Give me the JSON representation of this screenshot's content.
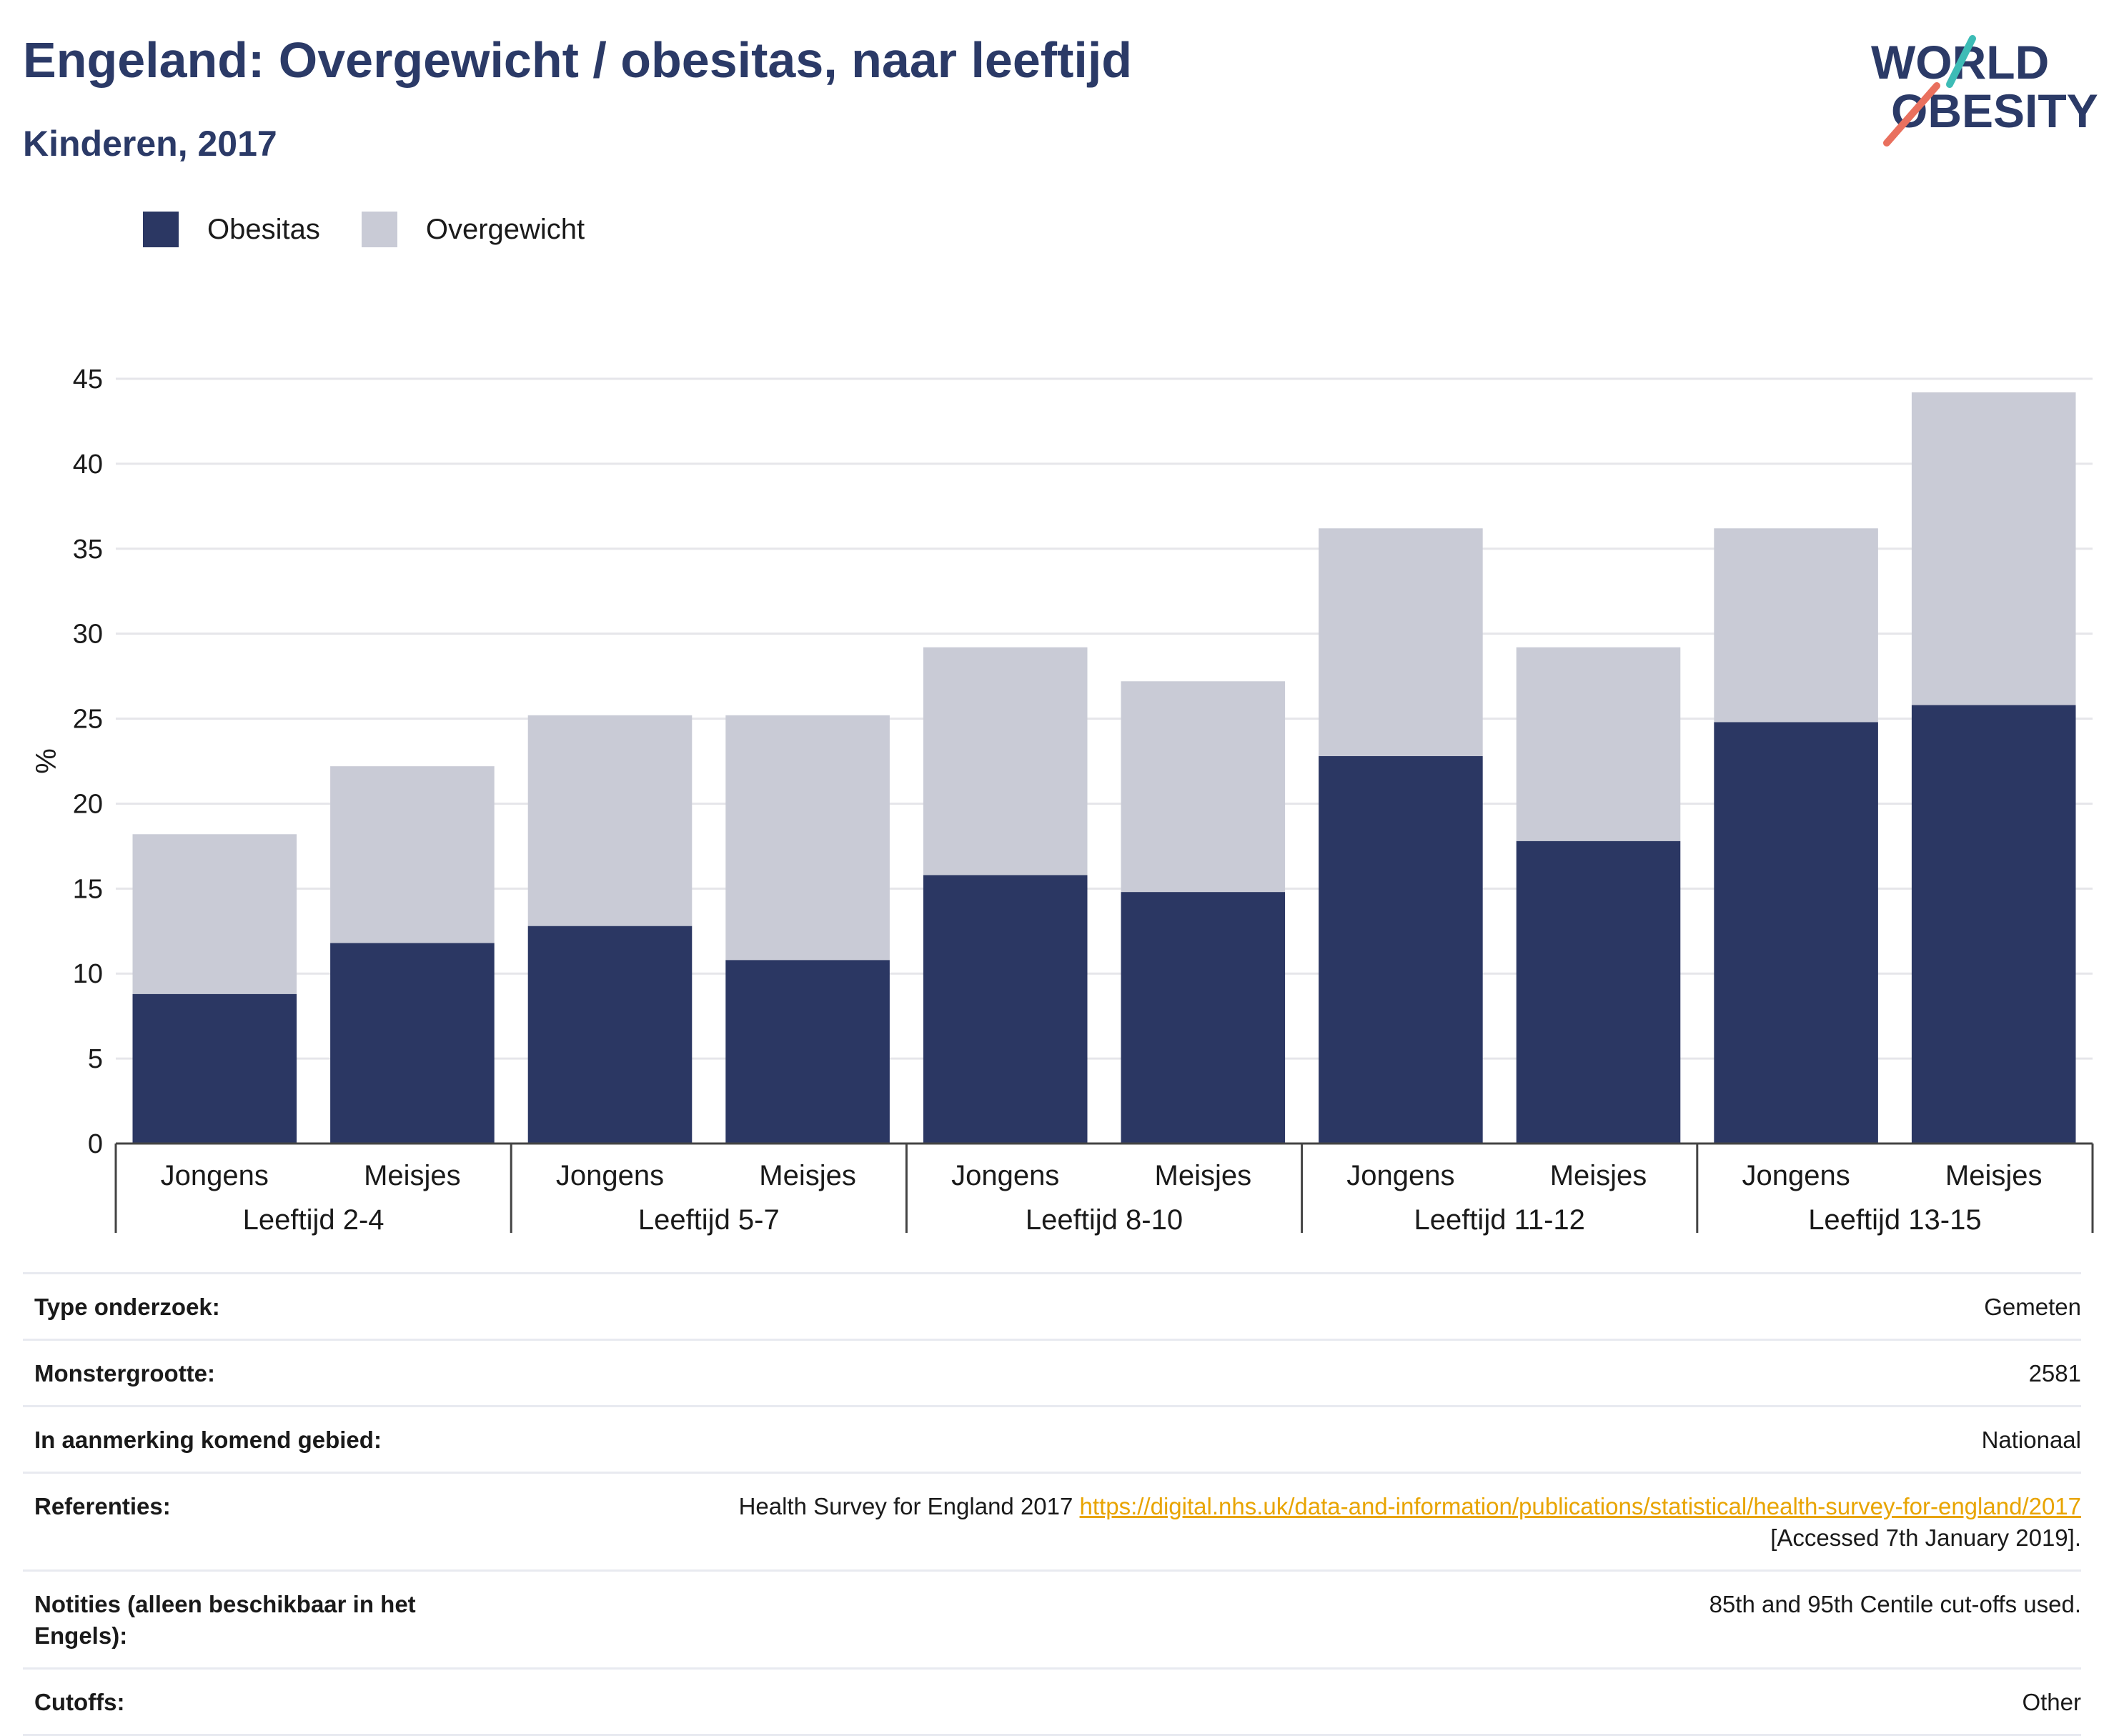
{
  "header": {
    "title": "Engeland: Overgewicht / obesitas, naar leeftijd",
    "subtitle": "Kinderen, 2017",
    "logo_line1": "WORLD",
    "logo_line2": "OBESITY"
  },
  "colors": {
    "obesitas": "#2b3763",
    "overgewicht": "#c9cbd6",
    "title": "#2b3a67",
    "link": "#e8a400",
    "logo_teal": "#3dbcb6",
    "logo_coral": "#e9705e"
  },
  "chart_data": {
    "type": "bar",
    "stacked": true,
    "ylabel": "%",
    "ylim": [
      0,
      45
    ],
    "yticks": [
      0,
      5,
      10,
      15,
      20,
      25,
      30,
      35,
      40,
      45
    ],
    "grid": true,
    "legend_position": "top-left",
    "groups": [
      "Leeftijd 2-4",
      "Leeftijd 5-7",
      "Leeftijd 8-10",
      "Leeftijd 11-12",
      "Leeftijd 13-15"
    ],
    "categories": [
      "Jongens",
      "Meisjes",
      "Jongens",
      "Meisjes",
      "Jongens",
      "Meisjes",
      "Jongens",
      "Meisjes",
      "Jongens",
      "Meisjes"
    ],
    "series": [
      {
        "name": "Obesitas",
        "values": [
          8.8,
          11.8,
          12.8,
          10.8,
          15.8,
          14.8,
          22.8,
          17.8,
          24.8,
          25.8
        ]
      },
      {
        "name": "Overgewicht",
        "values": [
          9.4,
          10.4,
          12.4,
          14.4,
          13.4,
          12.4,
          13.4,
          11.4,
          11.4,
          18.4
        ]
      }
    ]
  },
  "meta": {
    "rows": [
      {
        "key": "Type onderzoek:",
        "value": "Gemeten"
      },
      {
        "key": "Monstergrootte:",
        "value": "2581"
      },
      {
        "key": "In aanmerking komend gebied:",
        "value": "Nationaal"
      },
      {
        "key": "Referenties:",
        "value": "Health Survey for England 2017 ",
        "link": "https://digital.nhs.uk/data-and-information/publications/statistical/health-survey-for-england/2017",
        "value_after": "[Accessed 7th January 2019]."
      },
      {
        "key": "Notities (alleen beschikbaar in het Engels):",
        "value": "85th and 95th Centile cut-offs used."
      },
      {
        "key": "Cutoffs:",
        "value": "Other"
      }
    ]
  }
}
